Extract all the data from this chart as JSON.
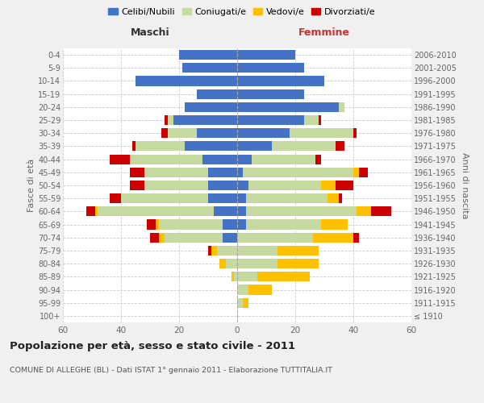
{
  "age_groups": [
    "100+",
    "95-99",
    "90-94",
    "85-89",
    "80-84",
    "75-79",
    "70-74",
    "65-69",
    "60-64",
    "55-59",
    "50-54",
    "45-49",
    "40-44",
    "35-39",
    "30-34",
    "25-29",
    "20-24",
    "15-19",
    "10-14",
    "5-9",
    "0-4"
  ],
  "birth_years": [
    "≤ 1910",
    "1911-1915",
    "1916-1920",
    "1921-1925",
    "1926-1930",
    "1931-1935",
    "1936-1940",
    "1941-1945",
    "1946-1950",
    "1951-1955",
    "1956-1960",
    "1961-1965",
    "1966-1970",
    "1971-1975",
    "1976-1980",
    "1981-1985",
    "1986-1990",
    "1991-1995",
    "1996-2000",
    "2001-2005",
    "2006-2010"
  ],
  "colors": {
    "celibi": "#4472c4",
    "coniugati": "#c5d9a0",
    "vedovi": "#ffc000",
    "divorziati": "#cc0000"
  },
  "maschi": {
    "celibi": [
      0,
      0,
      0,
      0,
      0,
      0,
      5,
      5,
      8,
      10,
      10,
      10,
      12,
      18,
      14,
      22,
      18,
      14,
      35,
      19,
      20
    ],
    "coniugati": [
      0,
      0,
      0,
      1,
      4,
      7,
      20,
      22,
      40,
      30,
      22,
      22,
      25,
      17,
      10,
      2,
      0,
      0,
      0,
      0,
      0
    ],
    "vedovi": [
      0,
      0,
      0,
      1,
      2,
      2,
      2,
      1,
      1,
      0,
      0,
      0,
      0,
      0,
      0,
      0,
      0,
      0,
      0,
      0,
      0
    ],
    "divorziati": [
      0,
      0,
      0,
      0,
      0,
      1,
      3,
      3,
      3,
      4,
      5,
      5,
      7,
      1,
      2,
      1,
      0,
      0,
      0,
      0,
      0
    ]
  },
  "femmine": {
    "nubili": [
      0,
      0,
      0,
      0,
      0,
      0,
      0,
      3,
      3,
      3,
      4,
      2,
      5,
      12,
      18,
      23,
      35,
      23,
      30,
      23,
      20
    ],
    "coniugate": [
      0,
      2,
      4,
      7,
      14,
      14,
      26,
      26,
      38,
      28,
      25,
      38,
      22,
      22,
      22,
      5,
      2,
      0,
      0,
      0,
      0
    ],
    "vedove": [
      0,
      2,
      8,
      18,
      14,
      14,
      14,
      9,
      5,
      4,
      5,
      2,
      0,
      0,
      0,
      0,
      0,
      0,
      0,
      0,
      0
    ],
    "divorziate": [
      0,
      0,
      0,
      0,
      0,
      0,
      2,
      0,
      7,
      1,
      6,
      3,
      2,
      3,
      1,
      1,
      0,
      0,
      0,
      0,
      0
    ]
  },
  "xlim": 60,
  "title": "Popolazione per età, sesso e stato civile - 2011",
  "subtitle": "COMUNE DI ALLEGHE (BL) - Dati ISTAT 1° gennaio 2011 - Elaborazione TUTTITALIA.IT",
  "xlabel_left": "Maschi",
  "xlabel_right": "Femmine",
  "ylabel_left": "Fasce di età",
  "ylabel_right": "Anni di nascita",
  "legend_labels": [
    "Celibi/Nubili",
    "Coniugati/e",
    "Vedovi/e",
    "Divorziati/e"
  ],
  "bg_color": "#f0f0f0",
  "plot_bg": "#ffffff"
}
